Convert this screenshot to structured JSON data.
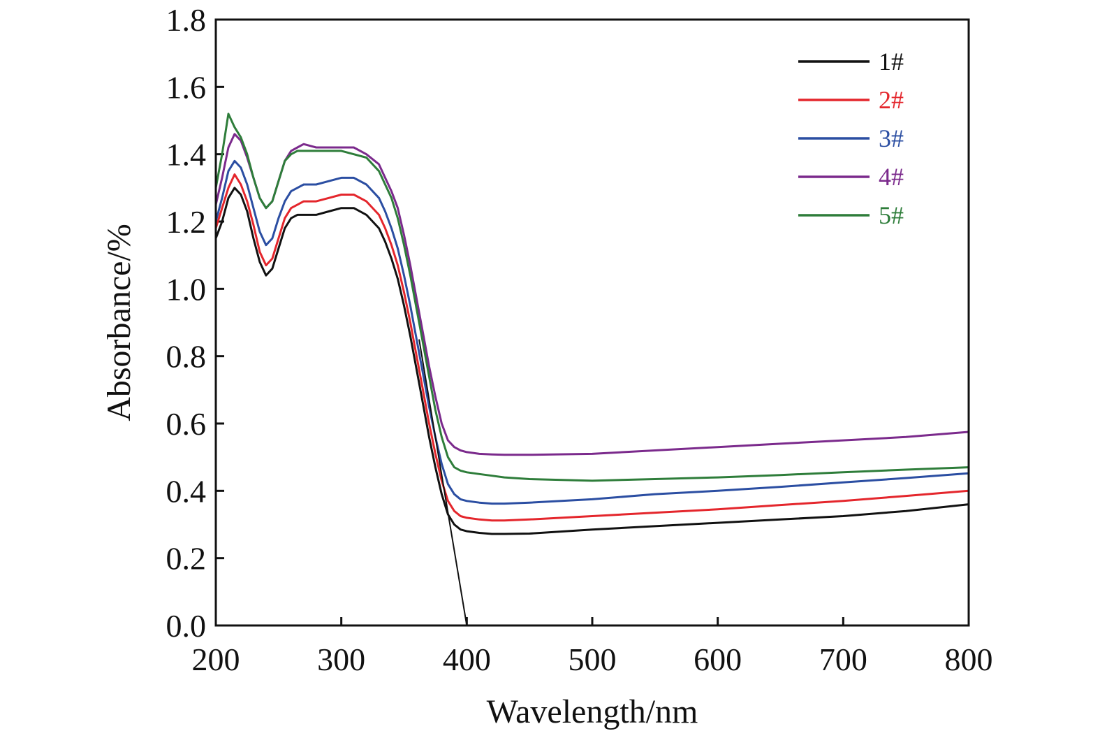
{
  "chart_data": {
    "type": "line",
    "xlabel": "Wavelength/nm",
    "ylabel": "Absorbance/%",
    "xlim": [
      200,
      800
    ],
    "ylim": [
      0.0,
      1.8
    ],
    "xticks": [
      "200",
      "300",
      "400",
      "500",
      "600",
      "700",
      "800"
    ],
    "yticks": [
      "0.0",
      "0.2",
      "0.4",
      "0.6",
      "0.8",
      "1.0",
      "1.2",
      "1.4",
      "1.6",
      "1.8"
    ],
    "grid": false,
    "legend_position": "top-right",
    "series": [
      {
        "name": "1#",
        "color": "#111111",
        "x": [
          200,
          205,
          210,
          215,
          220,
          225,
          230,
          235,
          240,
          245,
          250,
          255,
          260,
          265,
          270,
          280,
          290,
          300,
          310,
          320,
          330,
          335,
          340,
          345,
          350,
          355,
          360,
          365,
          370,
          375,
          380,
          385,
          390,
          395,
          400,
          410,
          420,
          430,
          450,
          500,
          550,
          600,
          650,
          700,
          750,
          800
        ],
        "y": [
          1.15,
          1.2,
          1.27,
          1.3,
          1.28,
          1.23,
          1.15,
          1.08,
          1.04,
          1.06,
          1.12,
          1.18,
          1.21,
          1.22,
          1.22,
          1.22,
          1.23,
          1.24,
          1.24,
          1.22,
          1.18,
          1.14,
          1.09,
          1.03,
          0.95,
          0.86,
          0.76,
          0.66,
          0.56,
          0.47,
          0.39,
          0.33,
          0.3,
          0.285,
          0.28,
          0.275,
          0.272,
          0.272,
          0.273,
          0.285,
          0.295,
          0.305,
          0.315,
          0.325,
          0.34,
          0.36
        ]
      },
      {
        "name": "2#",
        "color": "#e4262c",
        "x": [
          200,
          205,
          210,
          215,
          220,
          225,
          230,
          235,
          240,
          245,
          250,
          255,
          260,
          265,
          270,
          280,
          290,
          300,
          310,
          320,
          330,
          335,
          340,
          345,
          350,
          355,
          360,
          365,
          370,
          375,
          380,
          385,
          390,
          395,
          400,
          410,
          420,
          430,
          450,
          500,
          550,
          600,
          650,
          700,
          750,
          800
        ],
        "y": [
          1.18,
          1.24,
          1.3,
          1.34,
          1.31,
          1.26,
          1.19,
          1.11,
          1.07,
          1.09,
          1.15,
          1.21,
          1.24,
          1.25,
          1.26,
          1.26,
          1.27,
          1.28,
          1.28,
          1.26,
          1.22,
          1.18,
          1.13,
          1.07,
          0.99,
          0.9,
          0.8,
          0.7,
          0.6,
          0.51,
          0.43,
          0.37,
          0.34,
          0.325,
          0.32,
          0.315,
          0.312,
          0.312,
          0.315,
          0.325,
          0.335,
          0.345,
          0.358,
          0.37,
          0.385,
          0.4
        ]
      },
      {
        "name": "3#",
        "color": "#2b4ea2",
        "x": [
          200,
          205,
          210,
          215,
          220,
          225,
          230,
          235,
          240,
          245,
          250,
          255,
          260,
          265,
          270,
          280,
          290,
          300,
          310,
          320,
          330,
          335,
          340,
          345,
          350,
          355,
          360,
          365,
          370,
          375,
          380,
          385,
          390,
          395,
          400,
          410,
          420,
          430,
          450,
          500,
          550,
          600,
          650,
          700,
          750,
          800
        ],
        "y": [
          1.2,
          1.27,
          1.35,
          1.38,
          1.36,
          1.31,
          1.24,
          1.17,
          1.13,
          1.15,
          1.21,
          1.26,
          1.29,
          1.3,
          1.31,
          1.31,
          1.32,
          1.33,
          1.33,
          1.31,
          1.27,
          1.23,
          1.18,
          1.12,
          1.04,
          0.95,
          0.85,
          0.75,
          0.65,
          0.56,
          0.48,
          0.42,
          0.39,
          0.375,
          0.37,
          0.365,
          0.362,
          0.362,
          0.365,
          0.375,
          0.39,
          0.4,
          0.412,
          0.425,
          0.438,
          0.452
        ]
      },
      {
        "name": "4#",
        "color": "#7b2a8c",
        "x": [
          200,
          205,
          210,
          215,
          220,
          225,
          230,
          235,
          240,
          245,
          250,
          255,
          260,
          265,
          270,
          280,
          290,
          300,
          310,
          320,
          330,
          335,
          340,
          345,
          350,
          355,
          360,
          365,
          370,
          375,
          380,
          385,
          390,
          395,
          400,
          410,
          420,
          430,
          450,
          500,
          550,
          600,
          650,
          700,
          750,
          800
        ],
        "y": [
          1.25,
          1.33,
          1.42,
          1.46,
          1.44,
          1.39,
          1.33,
          1.27,
          1.24,
          1.26,
          1.32,
          1.38,
          1.41,
          1.42,
          1.43,
          1.42,
          1.42,
          1.42,
          1.42,
          1.4,
          1.37,
          1.33,
          1.29,
          1.24,
          1.16,
          1.07,
          0.97,
          0.87,
          0.77,
          0.68,
          0.6,
          0.55,
          0.53,
          0.52,
          0.515,
          0.51,
          0.508,
          0.507,
          0.507,
          0.51,
          0.52,
          0.53,
          0.54,
          0.55,
          0.56,
          0.575
        ]
      },
      {
        "name": "5#",
        "color": "#2e7d3a",
        "x": [
          200,
          205,
          210,
          215,
          220,
          225,
          230,
          235,
          240,
          245,
          250,
          255,
          260,
          265,
          270,
          280,
          290,
          300,
          310,
          320,
          330,
          335,
          340,
          345,
          350,
          355,
          360,
          365,
          370,
          375,
          380,
          385,
          390,
          395,
          400,
          410,
          420,
          430,
          450,
          500,
          550,
          600,
          650,
          700,
          750,
          800
        ],
        "y": [
          1.3,
          1.4,
          1.52,
          1.48,
          1.45,
          1.4,
          1.33,
          1.27,
          1.24,
          1.26,
          1.32,
          1.38,
          1.4,
          1.41,
          1.41,
          1.41,
          1.41,
          1.41,
          1.4,
          1.39,
          1.35,
          1.31,
          1.27,
          1.21,
          1.13,
          1.04,
          0.94,
          0.84,
          0.74,
          0.64,
          0.56,
          0.5,
          0.47,
          0.46,
          0.455,
          0.45,
          0.445,
          0.44,
          0.435,
          0.43,
          0.435,
          0.44,
          0.447,
          0.455,
          0.463,
          0.47
        ]
      }
    ],
    "annotations": [
      {
        "type": "tangent-line",
        "x": [
          362,
          400
        ],
        "y": [
          0.85,
          0.0
        ],
        "color": "#111111"
      }
    ]
  }
}
